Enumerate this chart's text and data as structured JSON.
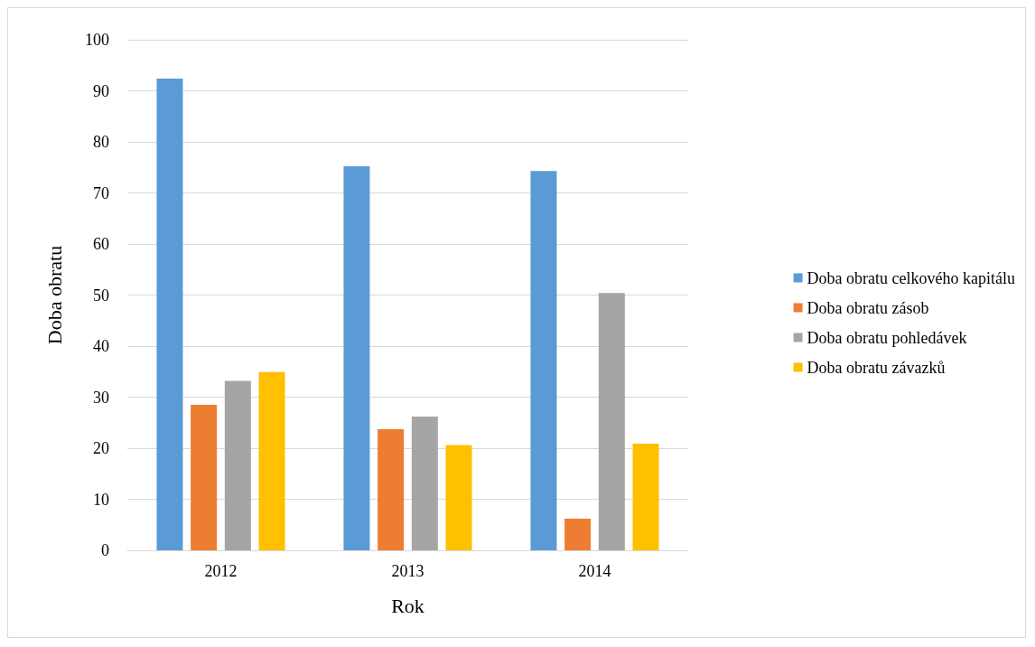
{
  "chart_data": {
    "type": "bar",
    "xlabel": "Rok",
    "ylabel": "Doba obratu",
    "categories": [
      "2012",
      "2013",
      "2014"
    ],
    "series": [
      {
        "name": "Doba obratu celkového kapitálu",
        "color": "#5b9bd5",
        "values": [
          92.4,
          75.2,
          74.3
        ]
      },
      {
        "name": "Doba obratu zásob",
        "color": "#ed7d31",
        "values": [
          28.5,
          23.7,
          6.2
        ]
      },
      {
        "name": "Doba obratu pohledávek",
        "color": "#a5a5a5",
        "values": [
          33.2,
          26.2,
          50.4
        ]
      },
      {
        "name": "Doba obratu závazků",
        "color": "#ffc000",
        "values": [
          34.9,
          20.6,
          20.9
        ]
      }
    ],
    "ylim": [
      0,
      100
    ],
    "yticks": [
      0,
      10,
      20,
      30,
      40,
      50,
      60,
      70,
      80,
      90,
      100
    ],
    "grid": "y",
    "legend": "right"
  }
}
